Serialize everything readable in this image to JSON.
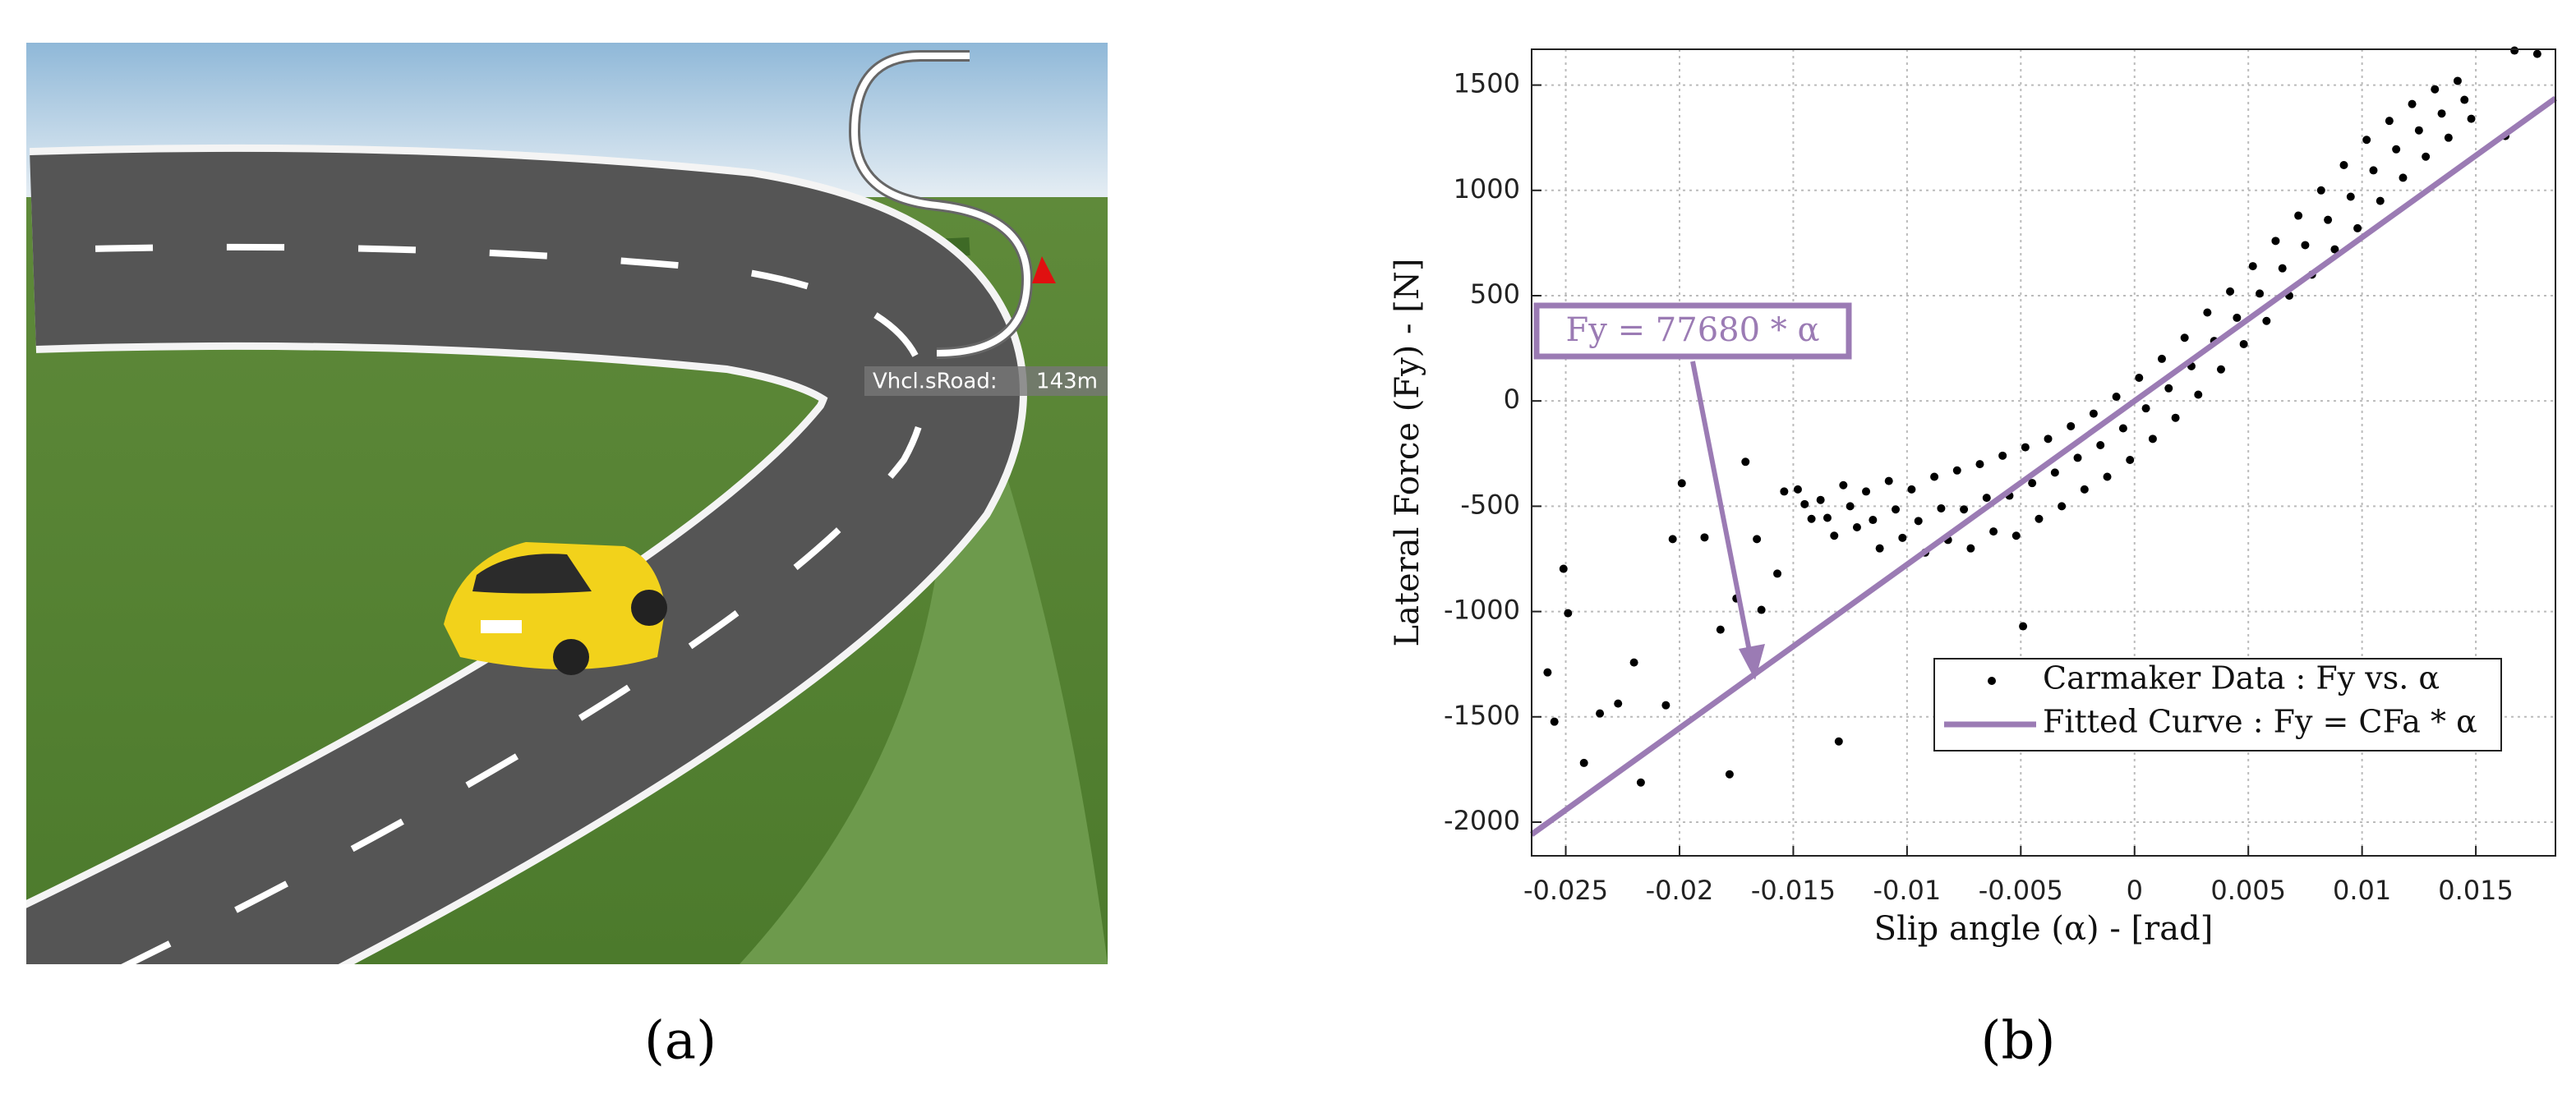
{
  "panel_a": {
    "overlay_label": "Vhcl.sRoad:",
    "overlay_value": "143m"
  },
  "captions": [
    "(a)",
    "(b)"
  ],
  "chart_data": {
    "type": "scatter",
    "xlabel": "Slip angle (α) - [rad]",
    "ylabel": "Lateral Force (Fy) - [N]",
    "annotation": "Fy = 77680 * α",
    "xlim": [
      -0.0265,
      0.0185
    ],
    "ylim": [
      -2160,
      1670
    ],
    "xticks": [
      -0.025,
      -0.02,
      -0.015,
      -0.01,
      -0.005,
      0,
      0.005,
      0.01,
      0.015
    ],
    "yticks": [
      -2000,
      -1500,
      -1000,
      -500,
      0,
      500,
      1000,
      1500
    ],
    "grid": true,
    "legend": "lower right",
    "series": [
      {
        "name": "Carmaker Data : Fy vs. α",
        "color": "#000000",
        "x": [
          -0.0258,
          -0.0255,
          -0.0249,
          -0.0251,
          -0.0242,
          -0.0235,
          -0.0227,
          -0.022,
          -0.0217,
          -0.0206,
          -0.0203,
          -0.0199,
          -0.0189,
          -0.0182,
          -0.0178,
          -0.0175,
          -0.0171,
          -0.0164,
          -0.0166,
          -0.0157,
          -0.0154,
          -0.013,
          -0.0049,
          0.0167,
          0.0177,
          0.0163,
          -0.0142,
          -0.0145,
          -0.0148,
          -0.0132,
          -0.0135,
          -0.0138,
          -0.0122,
          -0.0125,
          -0.0128,
          -0.0112,
          -0.0115,
          -0.0118,
          -0.0102,
          -0.0105,
          -0.0108,
          -0.0092,
          -0.0095,
          -0.0098,
          -0.0082,
          -0.0085,
          -0.0088,
          -0.0072,
          -0.0075,
          -0.0078,
          -0.0062,
          -0.0065,
          -0.0068,
          -0.0052,
          -0.0055,
          -0.0058,
          -0.0042,
          -0.0045,
          -0.0048,
          -0.0032,
          -0.0035,
          -0.0038,
          -0.0022,
          -0.0025,
          -0.0028,
          -0.0012,
          -0.0015,
          -0.0018,
          -0.0002,
          -0.0005,
          -0.0008,
          0.0008,
          0.0005,
          0.0002,
          0.0018,
          0.0015,
          0.0012,
          0.0028,
          0.0025,
          0.0022,
          0.0038,
          0.0035,
          0.0032,
          0.0048,
          0.0045,
          0.0042,
          0.0058,
          0.0055,
          0.0052,
          0.0068,
          0.0065,
          0.0062,
          0.0078,
          0.0075,
          0.0072,
          0.0088,
          0.0085,
          0.0082,
          0.0098,
          0.0095,
          0.0092,
          0.0108,
          0.0105,
          0.0102,
          0.0118,
          0.0115,
          0.0112,
          0.0128,
          0.0125,
          0.0122,
          0.0138,
          0.0135,
          0.0132,
          0.0148,
          0.0145,
          0.0142
        ],
        "values": [
          -1289,
          -1523,
          -1008,
          -797,
          -1719,
          -1484,
          -1437,
          -1242,
          -1812,
          -1445,
          -656,
          -391,
          -648,
          -1086,
          -1773,
          -938,
          -289,
          -992,
          -656,
          -820,
          -430,
          -1617,
          -1070,
          1664,
          1648,
          1258,
          -560,
          -490,
          -420,
          -640,
          -555,
          -470,
          -600,
          -500,
          -400,
          -700,
          -565,
          -430,
          -650,
          -515,
          -380,
          -720,
          -570,
          -420,
          -660,
          -510,
          -360,
          -700,
          -515,
          -330,
          -620,
          -460,
          -300,
          -640,
          -450,
          -260,
          -560,
          -390,
          -220,
          -500,
          -340,
          -180,
          -420,
          -270,
          -120,
          -360,
          -210,
          -60,
          -280,
          -130,
          20,
          -180,
          -35,
          110,
          -80,
          60,
          200,
          30,
          165,
          300,
          150,
          285,
          420,
          270,
          395,
          520,
          380,
          510,
          640,
          500,
          630,
          760,
          600,
          740,
          880,
          720,
          860,
          1000,
          820,
          970,
          1120,
          950,
          1095,
          1240,
          1060,
          1195,
          1330,
          1160,
          1285,
          1410,
          1250,
          1365,
          1480,
          1340,
          1430,
          1520
        ]
      },
      {
        "name": "Fitted Curve : Fy = CFa * α",
        "color": "#9b7bb4",
        "type": "line",
        "x": [
          -0.0265,
          0.0185
        ],
        "values": [
          -2058.52,
          1437.08
        ]
      }
    ]
  }
}
